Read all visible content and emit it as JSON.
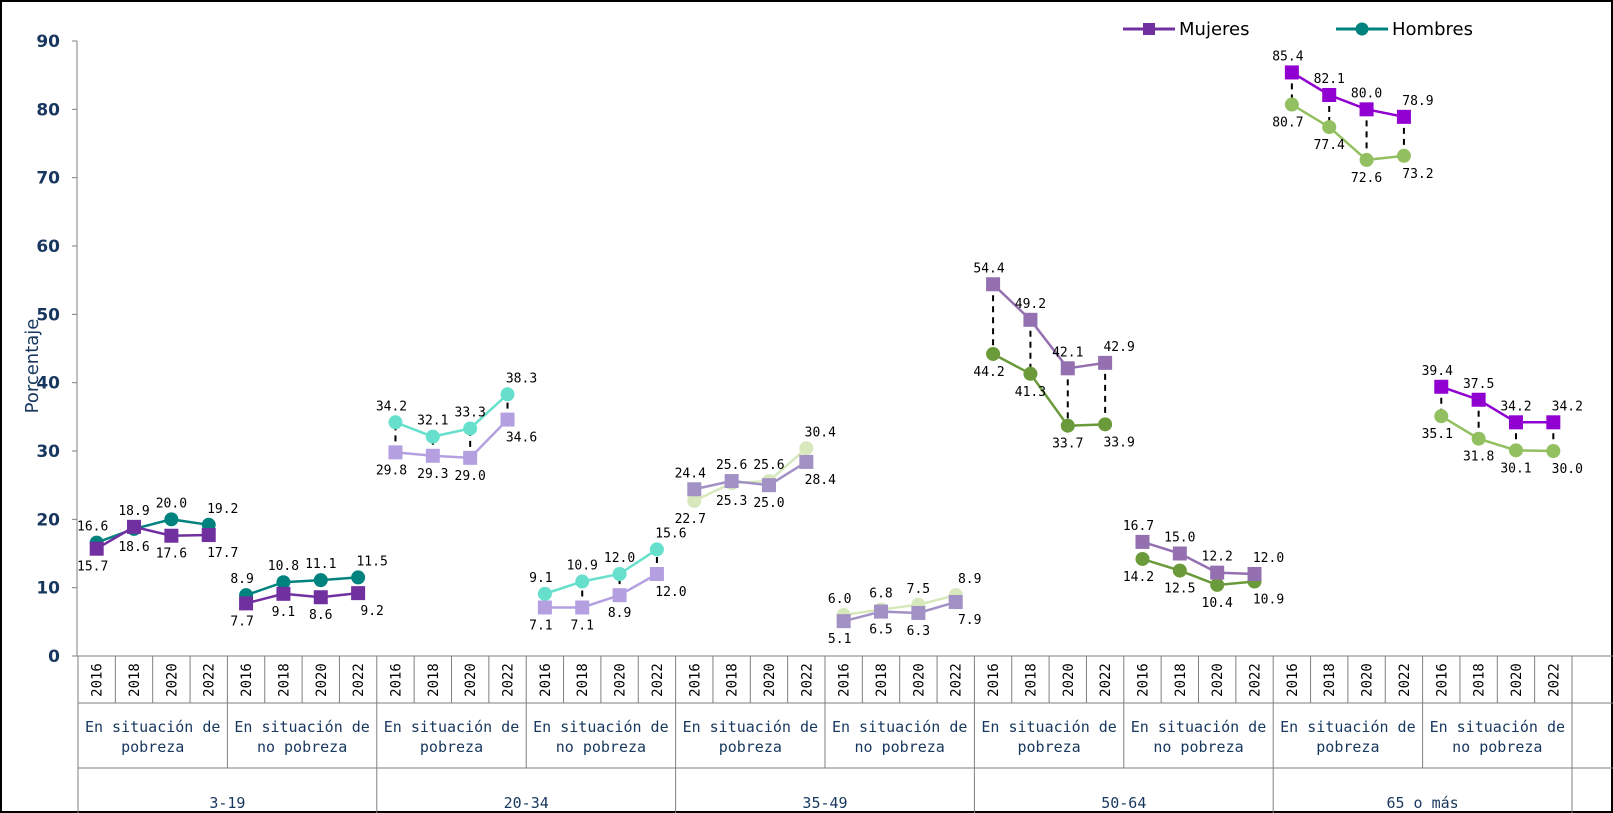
{
  "chart_data": {
    "type": "line",
    "title": "",
    "ylabel": "Porcentaje",
    "ylim": [
      0,
      90
    ],
    "yticks": [
      0,
      10,
      20,
      30,
      40,
      50,
      60,
      70,
      80,
      90
    ],
    "legend": {
      "placement": "top-right",
      "entries": [
        {
          "name": "Mujeres",
          "color": "#7030a0",
          "marker": "square"
        },
        {
          "name": "Hombres",
          "color": "#00827f",
          "marker": "circle"
        }
      ]
    },
    "years": [
      "2016",
      "2018",
      "2020",
      "2022"
    ],
    "groups": [
      {
        "age": "3-19",
        "subgroups": [
          {
            "condition": "En situación de pobreza",
            "mujeres": [
              15.7,
              18.9,
              17.6,
              17.7
            ],
            "hombres": [
              16.6,
              18.6,
              20.0,
              19.2
            ],
            "color_m": "#7030a0",
            "color_h": "#00827f"
          },
          {
            "condition": "En situación de no pobreza",
            "mujeres": [
              7.7,
              9.1,
              8.6,
              9.2
            ],
            "hombres": [
              8.9,
              10.8,
              11.1,
              11.5
            ],
            "color_m": "#7030a0",
            "color_h": "#00827f"
          }
        ]
      },
      {
        "age": "20-34",
        "subgroups": [
          {
            "condition": "En situación de pobreza",
            "mujeres": [
              29.8,
              29.3,
              29.0,
              34.6
            ],
            "hombres": [
              34.2,
              32.1,
              33.3,
              38.3
            ],
            "color_m": "#b4a0e0",
            "color_h": "#66e0cc"
          },
          {
            "condition": "En situación de no pobreza",
            "mujeres": [
              7.1,
              7.1,
              8.9,
              12.0
            ],
            "hombres": [
              9.1,
              10.9,
              12.0,
              15.6
            ],
            "color_m": "#b4a0e0",
            "color_h": "#66e0cc"
          }
        ]
      },
      {
        "age": "35-49",
        "subgroups": [
          {
            "condition": "En situación de pobreza",
            "mujeres": [
              24.4,
              25.6,
              25.0,
              28.4
            ],
            "hombres": [
              22.7,
              25.3,
              25.6,
              30.4
            ],
            "color_m": "#a291c4",
            "color_h": "#d6e8bc"
          },
          {
            "condition": "En situación de no pobreza",
            "mujeres": [
              5.1,
              6.5,
              6.3,
              7.9
            ],
            "hombres": [
              6.0,
              6.8,
              7.5,
              8.9
            ],
            "color_m": "#a291c4",
            "color_h": "#d6e8bc"
          }
        ]
      },
      {
        "age": "50-64",
        "subgroups": [
          {
            "condition": "En situación de pobreza",
            "mujeres": [
              54.4,
              49.2,
              42.1,
              42.9
            ],
            "hombres": [
              44.2,
              41.3,
              33.7,
              33.9
            ],
            "color_m": "#9470b0",
            "color_h": "#6b9a3a"
          },
          {
            "condition": "En situación de no pobreza",
            "mujeres": [
              16.7,
              15.0,
              12.2,
              12.0
            ],
            "hombres": [
              14.2,
              12.5,
              10.4,
              10.9
            ],
            "color_m": "#9470b0",
            "color_h": "#6b9a3a"
          }
        ]
      },
      {
        "age": "65 o más",
        "subgroups": [
          {
            "condition": "En situación de pobreza",
            "mujeres": [
              85.4,
              82.1,
              80.0,
              78.9
            ],
            "hombres": [
              80.7,
              77.4,
              72.6,
              73.2
            ],
            "color_m": "#9000d0",
            "color_h": "#92c060"
          },
          {
            "condition": "En situación de no pobreza",
            "mujeres": [
              39.4,
              37.5,
              34.2,
              34.2
            ],
            "hombres": [
              35.1,
              31.8,
              30.1,
              30.0
            ],
            "color_m": "#9000d0",
            "color_h": "#92c060"
          }
        ]
      }
    ],
    "data_label_text": {
      "3-19|0": {
        "m": [
          "15.7",
          "18.9",
          "17.6",
          "17.7"
        ],
        "h": [
          "16.6",
          "18.6",
          "20.0",
          "19.2"
        ]
      },
      "3-19|1": {
        "m": [
          "7.7",
          "9.1",
          "8.6",
          "9.2"
        ],
        "h": [
          "8.9",
          "10.8",
          "11.1",
          "11.5"
        ]
      },
      "20-34|0": {
        "m": [
          "29.8",
          "29.3",
          "29.0",
          "34.6"
        ],
        "h": [
          "34.2",
          "32.1",
          "33.3",
          "38.3"
        ]
      },
      "20-34|1": {
        "m": [
          "7.1",
          "7.1",
          "8.9",
          "12.0"
        ],
        "h": [
          "9.1",
          "10.9",
          "12.0",
          "15.6"
        ]
      },
      "35-49|0": {
        "m": [
          "24.4",
          "25.6",
          "25.0",
          "28.4"
        ],
        "h": [
          "22.7",
          "25.3",
          "25.6",
          "30.4"
        ]
      },
      "35-49|1": {
        "m": [
          "5.1",
          "6.5",
          "6.3",
          "7.9"
        ],
        "h": [
          "6.0",
          "6.8",
          "7.5",
          "8.9"
        ]
      },
      "50-64|0": {
        "m": [
          "54.4",
          "49.2",
          "42.1",
          "42.9"
        ],
        "h": [
          "44.2",
          "41.3",
          "33.7",
          "33.9"
        ]
      },
      "50-64|1": {
        "m": [
          "16.7",
          "15.0",
          "12.2",
          "12.0"
        ],
        "h": [
          "14.2",
          "12.5",
          "10.4",
          "10.9"
        ]
      },
      "65 o más|0": {
        "m": [
          "85.4",
          "82.1",
          "80.0",
          "78.9"
        ],
        "h": [
          "80.7",
          "77.4",
          "72.6",
          "73.2"
        ]
      },
      "65 o más|1": {
        "m": [
          "39.4",
          "37.5",
          "34.2",
          "34.2"
        ],
        "h": [
          "35.1",
          "31.8",
          "30.1",
          "30.0"
        ]
      }
    }
  }
}
